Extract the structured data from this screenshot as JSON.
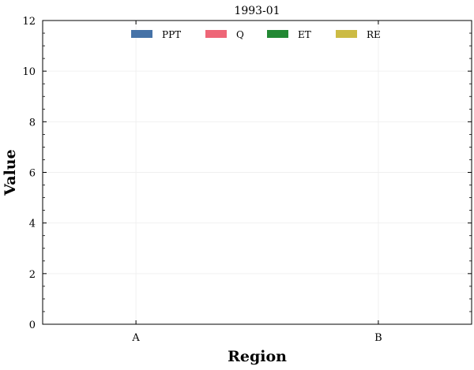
{
  "chart_data": {
    "type": "bar",
    "title": "1993-01",
    "xlabel": "Region",
    "ylabel": "Value",
    "categories": [
      "A",
      "B"
    ],
    "series": [
      {
        "name": "PPT",
        "values": [
          0,
          0
        ],
        "color": "#4572a7"
      },
      {
        "name": "Q",
        "values": [
          0,
          0
        ],
        "color": "#ee6677"
      },
      {
        "name": "ET",
        "values": [
          0,
          0
        ],
        "color": "#228833"
      },
      {
        "name": "RE",
        "values": [
          0,
          0
        ],
        "color": "#ccbb44"
      }
    ],
    "ylim": [
      0,
      12
    ],
    "yticks": [
      0,
      2,
      4,
      6,
      8,
      10,
      12
    ],
    "grid": true,
    "legend": "top-center"
  }
}
